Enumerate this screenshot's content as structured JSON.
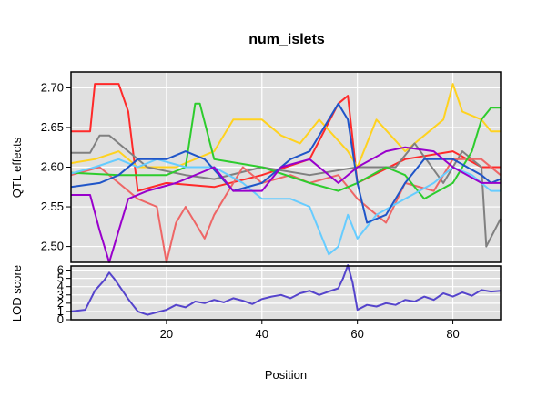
{
  "chart_data": [
    {
      "type": "line",
      "title": "num_islets",
      "ylabel": "QTL effects",
      "xlabel": "",
      "xlim": [
        0,
        90
      ],
      "ylim": [
        2.48,
        2.72
      ],
      "yticks": [
        2.5,
        2.55,
        2.6,
        2.65,
        2.7
      ],
      "ytick_labels": [
        "2.50",
        "2.55",
        "2.60",
        "2.65",
        "2.70"
      ],
      "grid": true,
      "background": "#e0e0e0",
      "series": [
        {
          "color": "#ff2a2a",
          "x": [
            0,
            4,
            5,
            10,
            12,
            14,
            20,
            30,
            40,
            50,
            56,
            58,
            60,
            70,
            80,
            86,
            90
          ],
          "y": [
            2.645,
            2.645,
            2.705,
            2.705,
            2.67,
            2.57,
            2.58,
            2.575,
            2.59,
            2.61,
            2.68,
            2.69,
            2.58,
            2.61,
            2.62,
            2.6,
            2.6
          ]
        },
        {
          "color": "#ffd21f",
          "x": [
            0,
            5,
            10,
            14,
            22,
            30,
            34,
            40,
            44,
            48,
            52,
            58,
            60,
            64,
            70,
            78,
            80,
            82,
            86,
            88,
            90
          ],
          "y": [
            2.605,
            2.61,
            2.62,
            2.6,
            2.6,
            2.62,
            2.66,
            2.66,
            2.64,
            2.63,
            2.66,
            2.62,
            2.6,
            2.66,
            2.62,
            2.66,
            2.705,
            2.67,
            2.66,
            2.645,
            2.645
          ]
        },
        {
          "color": "#808080",
          "x": [
            0,
            4,
            6,
            8,
            12,
            16,
            24,
            30,
            40,
            50,
            60,
            68,
            72,
            78,
            82,
            86,
            87,
            90
          ],
          "y": [
            2.618,
            2.618,
            2.64,
            2.64,
            2.62,
            2.6,
            2.59,
            2.585,
            2.6,
            2.59,
            2.6,
            2.6,
            2.63,
            2.58,
            2.62,
            2.6,
            2.5,
            2.535
          ]
        },
        {
          "color": "#ee6666",
          "x": [
            0,
            6,
            10,
            14,
            18,
            20,
            22,
            24,
            28,
            30,
            36,
            40,
            46,
            50,
            56,
            60,
            66,
            70,
            76,
            80,
            86,
            90
          ],
          "y": [
            2.59,
            2.6,
            2.58,
            2.56,
            2.55,
            2.48,
            2.53,
            2.55,
            2.51,
            2.54,
            2.6,
            2.58,
            2.59,
            2.58,
            2.59,
            2.56,
            2.53,
            2.58,
            2.57,
            2.61,
            2.61,
            2.59
          ]
        },
        {
          "color": "#2dcc2d",
          "x": [
            0,
            10,
            20,
            24,
            26,
            27,
            30,
            40,
            50,
            56,
            60,
            66,
            70,
            74,
            80,
            84,
            86,
            88,
            90
          ],
          "y": [
            2.593,
            2.59,
            2.59,
            2.6,
            2.68,
            2.68,
            2.61,
            2.6,
            2.58,
            2.57,
            2.58,
            2.6,
            2.59,
            2.56,
            2.58,
            2.62,
            2.66,
            2.675,
            2.675
          ]
        },
        {
          "color": "#66ccff",
          "x": [
            0,
            5,
            10,
            14,
            18,
            24,
            30,
            36,
            40,
            46,
            50,
            54,
            56,
            58,
            60,
            64,
            70,
            76,
            80,
            84,
            86,
            88,
            90
          ],
          "y": [
            2.592,
            2.6,
            2.61,
            2.6,
            2.61,
            2.6,
            2.6,
            2.58,
            2.56,
            2.56,
            2.55,
            2.49,
            2.5,
            2.54,
            2.51,
            2.54,
            2.56,
            2.58,
            2.6,
            2.59,
            2.58,
            2.57,
            2.57
          ]
        },
        {
          "color": "#1f55c8",
          "x": [
            0,
            6,
            10,
            14,
            20,
            24,
            28,
            34,
            40,
            46,
            50,
            56,
            58,
            60,
            62,
            66,
            70,
            74,
            80,
            86,
            88,
            90
          ],
          "y": [
            2.575,
            2.58,
            2.59,
            2.61,
            2.61,
            2.62,
            2.61,
            2.57,
            2.58,
            2.61,
            2.62,
            2.68,
            2.66,
            2.58,
            2.53,
            2.54,
            2.58,
            2.61,
            2.61,
            2.59,
            2.58,
            2.585
          ]
        },
        {
          "color": "#9900cc",
          "x": [
            0,
            4,
            6,
            8,
            10,
            12,
            16,
            22,
            30,
            34,
            40,
            44,
            50,
            56,
            60,
            66,
            70,
            76,
            80,
            86,
            88,
            90
          ],
          "y": [
            2.565,
            2.565,
            2.52,
            2.48,
            2.52,
            2.56,
            2.57,
            2.58,
            2.6,
            2.57,
            2.57,
            2.6,
            2.61,
            2.58,
            2.6,
            2.62,
            2.625,
            2.62,
            2.6,
            2.58,
            2.58,
            2.58
          ]
        }
      ]
    },
    {
      "type": "line",
      "title": "",
      "ylabel": "LOD score",
      "xlabel": "Position",
      "xlim": [
        0,
        90
      ],
      "ylim": [
        0,
        6.5
      ],
      "xticks": [
        20,
        40,
        60,
        80
      ],
      "xtick_labels": [
        "20",
        "40",
        "60",
        "80"
      ],
      "yticks": [
        0,
        1,
        2,
        3,
        4,
        5,
        6
      ],
      "ytick_labels": [
        "0",
        "1",
        "2",
        "3",
        "4",
        "5",
        "6"
      ],
      "grid": true,
      "background": "#e0e0e0",
      "series": [
        {
          "color": "#5544cc",
          "x": [
            0,
            3,
            5,
            7,
            8,
            9,
            10,
            12,
            14,
            16,
            18,
            20,
            22,
            24,
            26,
            28,
            30,
            32,
            34,
            36,
            38,
            40,
            42,
            44,
            46,
            48,
            50,
            52,
            54,
            56,
            57,
            58,
            59,
            60,
            62,
            64,
            66,
            68,
            70,
            72,
            74,
            76,
            78,
            80,
            82,
            84,
            86,
            88,
            90
          ],
          "y": [
            1.0,
            1.2,
            3.5,
            4.8,
            5.7,
            5.0,
            4.2,
            2.5,
            1.0,
            0.6,
            0.9,
            1.2,
            1.8,
            1.5,
            2.2,
            2.0,
            2.4,
            2.1,
            2.6,
            2.3,
            1.9,
            2.5,
            2.8,
            3.0,
            2.6,
            3.2,
            3.5,
            3.0,
            3.4,
            3.8,
            5.0,
            6.6,
            4.5,
            1.2,
            1.8,
            1.6,
            2.0,
            1.8,
            2.4,
            2.2,
            2.8,
            2.4,
            3.2,
            2.8,
            3.3,
            2.9,
            3.6,
            3.4,
            3.5
          ]
        }
      ]
    }
  ]
}
